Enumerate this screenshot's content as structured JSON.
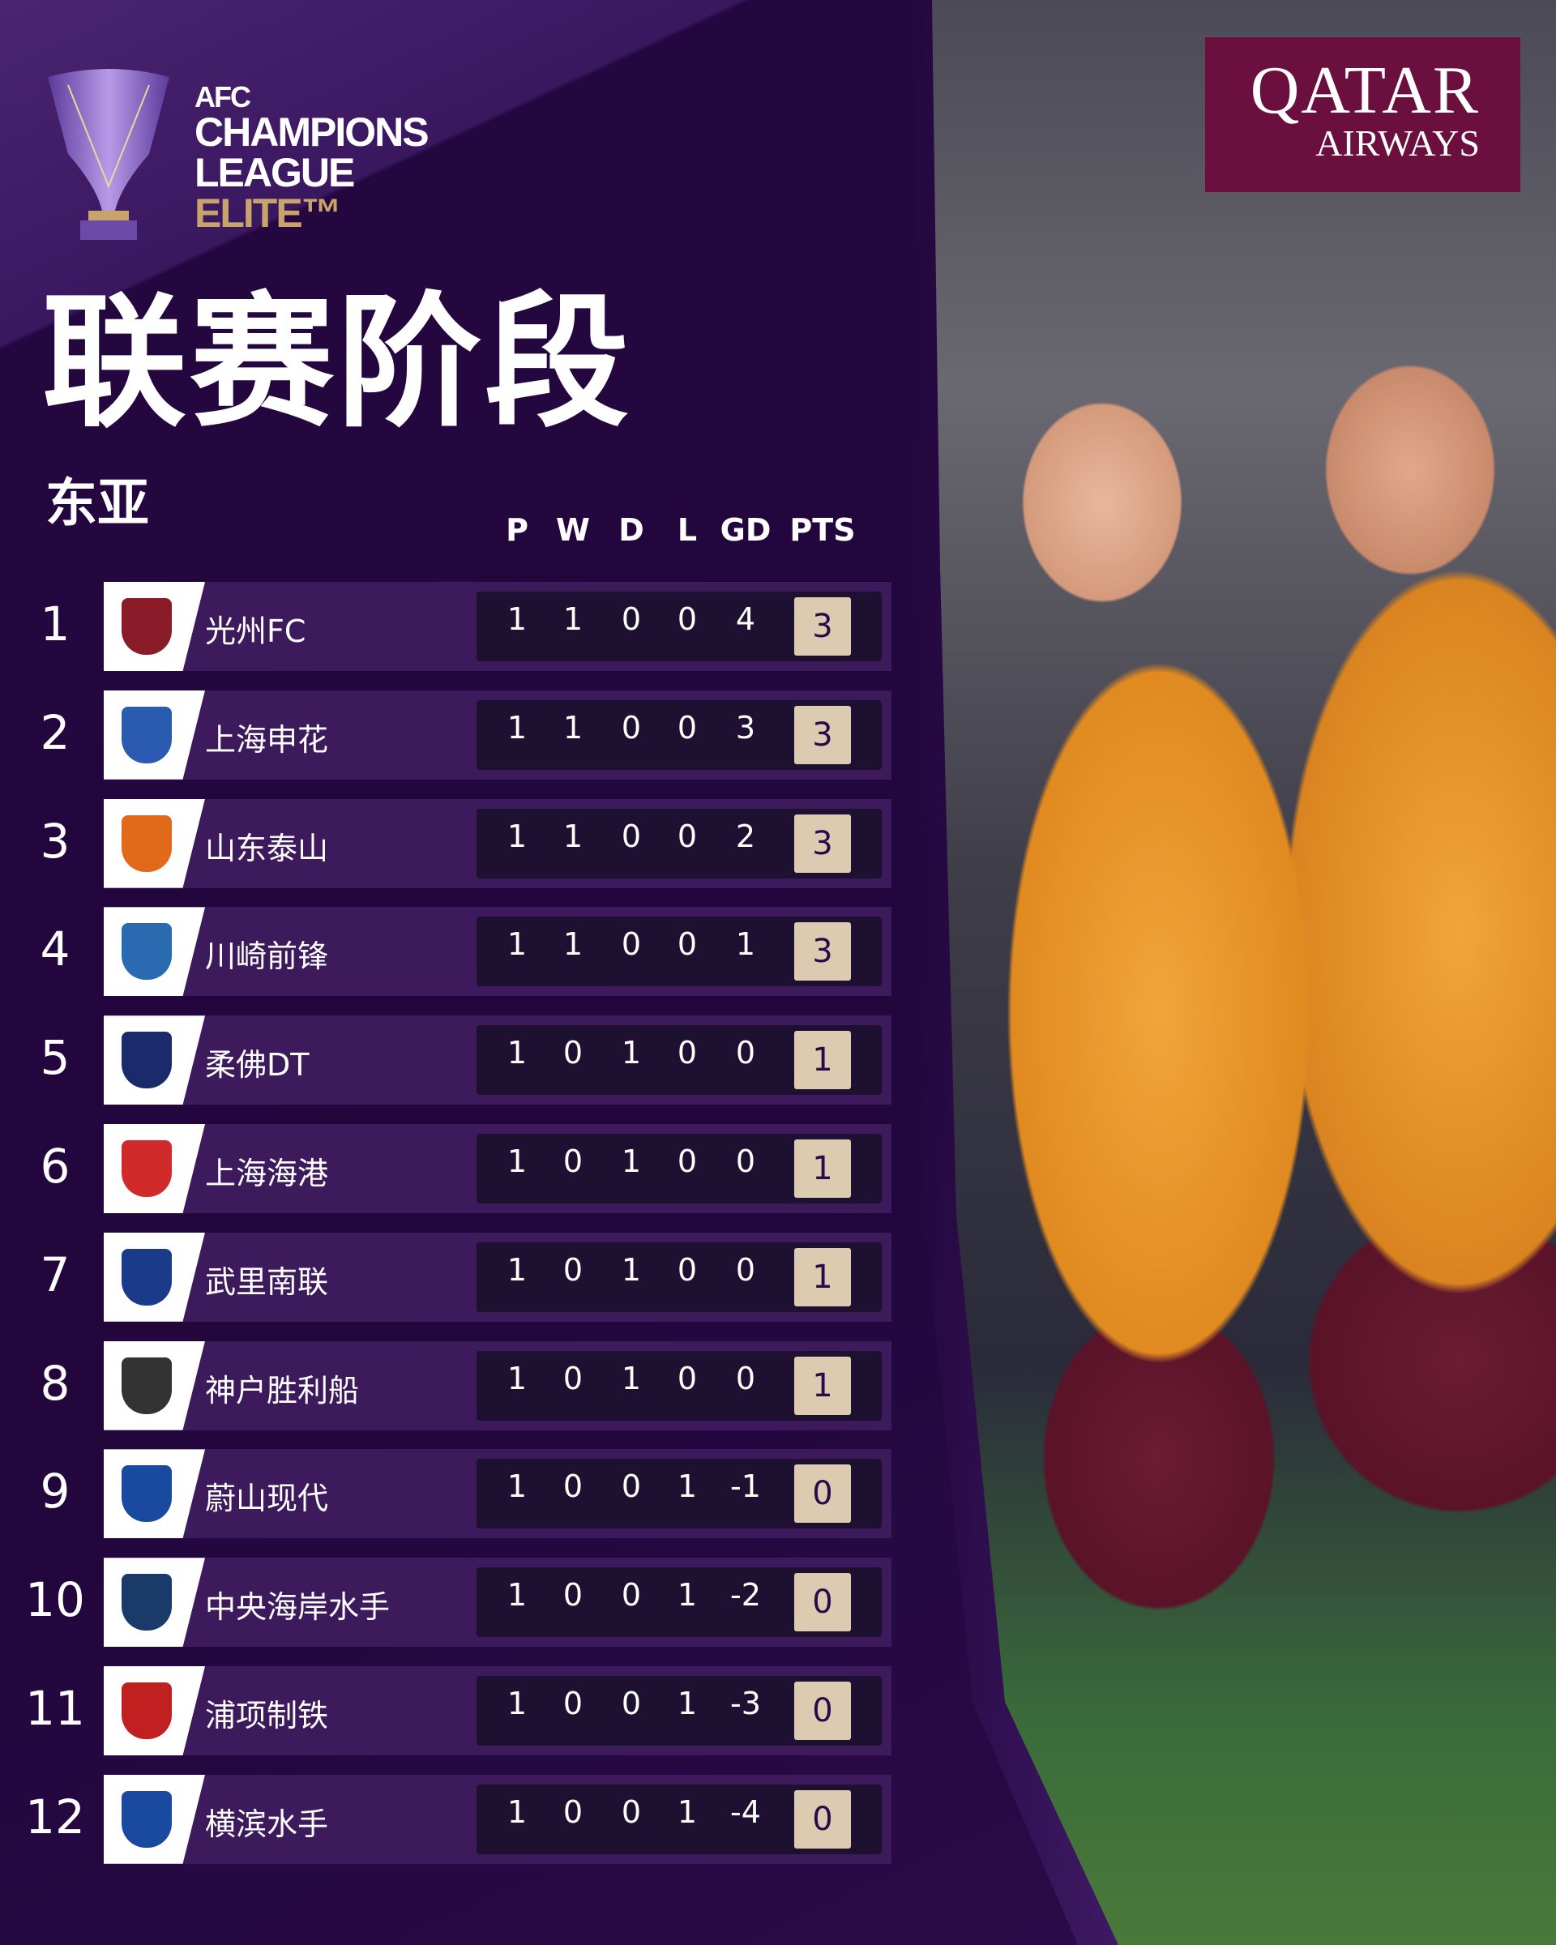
{
  "brand": {
    "line1": "AFC",
    "line2": "CHAMPIONS",
    "line3": "LEAGUE",
    "line4": "ELITE™"
  },
  "sponsor": {
    "line1": "QATAR",
    "line2": "AIRWAYS"
  },
  "title": "联赛阶段",
  "subtitle": "东亚",
  "headers": [
    "P",
    "W",
    "D",
    "L",
    "GD",
    "PTS"
  ],
  "colors": {
    "background": "#22063c",
    "card": "#3d1a5c",
    "stats_box": "#1e1030",
    "points_box": "#dccbb0",
    "sponsor": "#6b0f3e",
    "elite_gold": "#c9a46a"
  },
  "rows": [
    {
      "rank": "1",
      "team": "光州FC",
      "badge_color": "#8a1c2a",
      "p": "1",
      "w": "1",
      "d": "0",
      "l": "0",
      "gd": "4",
      "pts": "3"
    },
    {
      "rank": "2",
      "team": "上海申花",
      "badge_color": "#2a5bb0",
      "p": "1",
      "w": "1",
      "d": "0",
      "l": "0",
      "gd": "3",
      "pts": "3"
    },
    {
      "rank": "3",
      "team": "山东泰山",
      "badge_color": "#e06a1a",
      "p": "1",
      "w": "1",
      "d": "0",
      "l": "0",
      "gd": "2",
      "pts": "3"
    },
    {
      "rank": "4",
      "team": "川崎前锋",
      "badge_color": "#2a6ab0",
      "p": "1",
      "w": "1",
      "d": "0",
      "l": "0",
      "gd": "1",
      "pts": "3"
    },
    {
      "rank": "5",
      "team": "柔佛DT",
      "badge_color": "#1a2a6a",
      "p": "1",
      "w": "0",
      "d": "1",
      "l": "0",
      "gd": "0",
      "pts": "1"
    },
    {
      "rank": "6",
      "team": "上海海港",
      "badge_color": "#d02a2a",
      "p": "1",
      "w": "0",
      "d": "1",
      "l": "0",
      "gd": "0",
      "pts": "1"
    },
    {
      "rank": "7",
      "team": "武里南联",
      "badge_color": "#1a3a8a",
      "p": "1",
      "w": "0",
      "d": "1",
      "l": "0",
      "gd": "0",
      "pts": "1"
    },
    {
      "rank": "8",
      "team": "神户胜利船",
      "badge_color": "#333333",
      "p": "1",
      "w": "0",
      "d": "1",
      "l": "0",
      "gd": "0",
      "pts": "1"
    },
    {
      "rank": "9",
      "team": "蔚山现代",
      "badge_color": "#1a4aa0",
      "p": "1",
      "w": "0",
      "d": "0",
      "l": "1",
      "gd": "-1",
      "pts": "0"
    },
    {
      "rank": "10",
      "team": "中央海岸水手",
      "badge_color": "#1a3a6a",
      "p": "1",
      "w": "0",
      "d": "0",
      "l": "1",
      "gd": "-2",
      "pts": "0"
    },
    {
      "rank": "11",
      "team": "浦项制铁",
      "badge_color": "#c02020",
      "p": "1",
      "w": "0",
      "d": "0",
      "l": "1",
      "gd": "-3",
      "pts": "0"
    },
    {
      "rank": "12",
      "team": "横滨水手",
      "badge_color": "#1a4aa0",
      "p": "1",
      "w": "0",
      "d": "0",
      "l": "1",
      "gd": "-4",
      "pts": "0"
    }
  ]
}
